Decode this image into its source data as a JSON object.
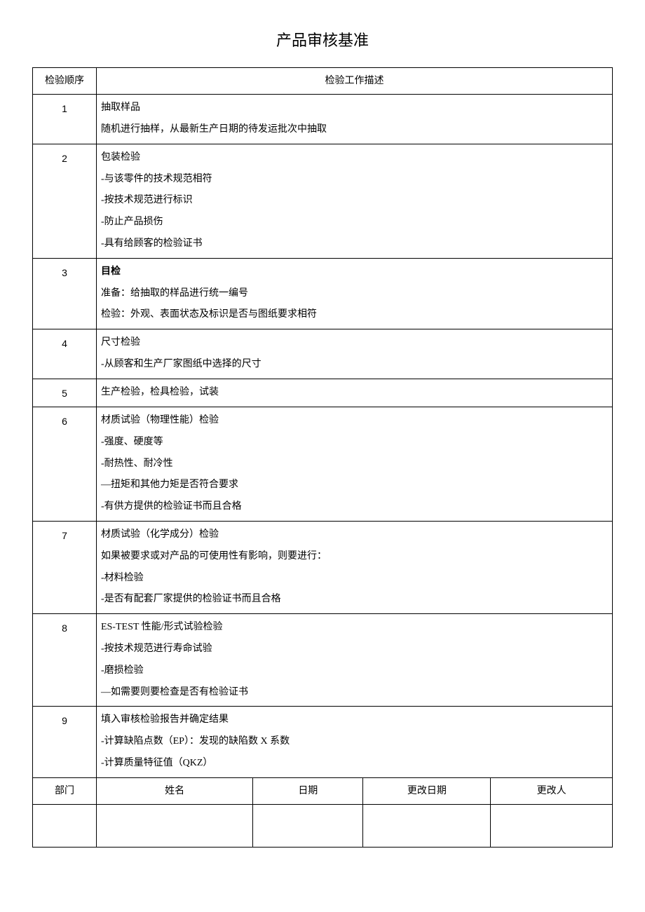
{
  "title": "产品审核基准",
  "headers": {
    "seq": "检验顺序",
    "desc": "检验工作描述"
  },
  "rows": [
    {
      "seq": "1",
      "lines": [
        "抽取样品",
        "随机进行抽样，从最新生产日期的待发运批次中抽取"
      ]
    },
    {
      "seq": "2",
      "lines": [
        "包装检验",
        "-与该零件的技术规范相符",
        "-按技术规范进行标识",
        "-防止产品损伤",
        "-具有给顾客的检验证书"
      ]
    },
    {
      "seq": "3",
      "lines": [
        {
          "text": "目检",
          "bold": true
        },
        "准备：给抽取的样品进行统一编号",
        "检验：外观、表面状态及标识是否与图纸要求相符"
      ]
    },
    {
      "seq": "4",
      "lines": [
        "尺寸检验",
        "-从顾客和生产厂家图纸中选择的尺寸"
      ]
    },
    {
      "seq": "5",
      "lines": [
        "生产检验，检具检验，试装"
      ]
    },
    {
      "seq": "6",
      "lines": [
        "材质试验（物理性能）检验",
        "-强度、硬度等",
        "-耐热性、耐冷性",
        "—扭矩和其他力矩是否符合要求",
        "-有供方提供的检验证书而且合格"
      ]
    },
    {
      "seq": "7",
      "lines": [
        "材质试验（化学成分）检验",
        "如果被要求或对产品的可使用性有影响，则要进行：",
        "-材料检验",
        "-是否有配套厂家提供的检验证书而且合格"
      ]
    },
    {
      "seq": "8",
      "lines": [
        "ES-TEST 性能/形式试验检验",
        "-按技术规范进行寿命试验",
        "-磨损检验",
        "—如需要则要检查是否有检验证书"
      ]
    },
    {
      "seq": "9",
      "lines": [
        "填入审核检验报告并确定结果",
        "-计算缺陷点数（EP）：发现的缺陷数 X 系数",
        "-计算质量特征值（QKZ）"
      ]
    }
  ],
  "footer": {
    "dept": "部门",
    "name": "姓名",
    "date": "日期",
    "mod_date": "更改日期",
    "mod_by": "更改人"
  }
}
